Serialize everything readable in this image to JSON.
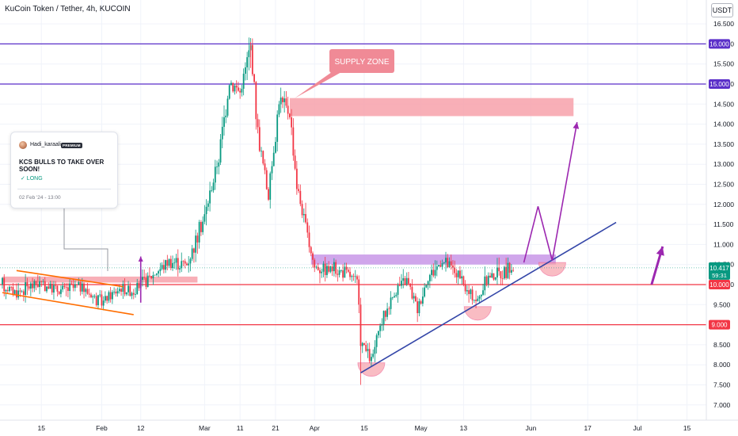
{
  "header": {
    "title": "KuCoin Token / Tether, 4h, KUCOIN",
    "currency": "USDT"
  },
  "idea_card": {
    "author": "Hadi_karaali",
    "badge": "PREMIUM",
    "title": "KCS BULLS TO TAKE OVER SOON!",
    "direction": "✓ LONG",
    "date": "02 Feb '24 - 13:00"
  },
  "annotations": {
    "supply_zone": "SUPPLY ZONE"
  },
  "colors": {
    "up": "#089981",
    "down": "#f23645",
    "purple": "#5b2fc9",
    "red_level": "#f23645",
    "zone_red": "#f7a1aa",
    "zone_purple": "#c896e8",
    "trend_blue": "#3446a8",
    "arrow_purple": "#9c27b0",
    "orange": "#ff6d00",
    "current_price_bg": "#089981"
  },
  "chart_data": {
    "type": "candlestick",
    "title": "KuCoin Token / Tether, 4h, KUCOIN",
    "y_axis": {
      "ticks": [
        "7.000",
        "7.500",
        "8.000",
        "8.500",
        "9.000",
        "9.500",
        "10.000",
        "10.500",
        "11.000",
        "11.500",
        "12.000",
        "12.500",
        "13.000",
        "13.500",
        "14.000",
        "14.500",
        "15.000",
        "15.500",
        "16.000",
        "16.500"
      ],
      "range": [
        6.85,
        16.6
      ]
    },
    "x_axis": {
      "ticks": [
        "15",
        "Feb",
        "12",
        "Mar",
        "11",
        "21",
        "Apr",
        "15",
        "May",
        "13",
        "Jun",
        "17",
        "Jul",
        "15"
      ],
      "range": [
        "2024-01-04",
        "2024-07-22"
      ]
    },
    "horizontal_levels": [
      {
        "price": 16.0,
        "label": "16.000",
        "color": "purple"
      },
      {
        "price": 15.0,
        "label": "15.000",
        "color": "purple"
      },
      {
        "price": 10.0,
        "label": "10.000",
        "color": "red"
      },
      {
        "price": 9.0,
        "label": "9.000",
        "color": "red"
      }
    ],
    "current_price": {
      "value": "10.417",
      "countdown": "59:31"
    },
    "price_path": [
      {
        "date": "2024-01-04",
        "price": 10.0
      },
      {
        "date": "2024-01-08",
        "price": 9.8
      },
      {
        "date": "2024-01-14",
        "price": 10.05
      },
      {
        "date": "2024-01-20",
        "price": 9.85
      },
      {
        "date": "2024-01-26",
        "price": 9.95
      },
      {
        "date": "2024-02-01",
        "price": 9.55
      },
      {
        "date": "2024-02-06",
        "price": 9.9
      },
      {
        "date": "2024-02-10",
        "price": 9.85
      },
      {
        "date": "2024-02-15",
        "price": 10.2
      },
      {
        "date": "2024-02-20",
        "price": 10.6
      },
      {
        "date": "2024-02-25",
        "price": 10.5
      },
      {
        "date": "2024-03-01",
        "price": 11.7
      },
      {
        "date": "2024-03-05",
        "price": 13.2
      },
      {
        "date": "2024-03-08",
        "price": 15.1
      },
      {
        "date": "2024-03-11",
        "price": 14.8
      },
      {
        "date": "2024-03-14",
        "price": 15.95
      },
      {
        "date": "2024-03-16",
        "price": 13.8
      },
      {
        "date": "2024-03-19",
        "price": 12.2
      },
      {
        "date": "2024-03-22",
        "price": 14.6
      },
      {
        "date": "2024-03-25",
        "price": 14.3
      },
      {
        "date": "2024-03-27",
        "price": 12.5
      },
      {
        "date": "2024-03-30",
        "price": 11.2
      },
      {
        "date": "2024-04-01",
        "price": 10.45
      },
      {
        "date": "2024-04-05",
        "price": 10.4
      },
      {
        "date": "2024-04-10",
        "price": 10.3
      },
      {
        "date": "2024-04-13",
        "price": 10.05
      },
      {
        "date": "2024-04-14",
        "price": 8.6
      },
      {
        "date": "2024-04-17",
        "price": 8.1
      },
      {
        "date": "2024-04-20",
        "price": 9.1
      },
      {
        "date": "2024-04-24",
        "price": 9.9
      },
      {
        "date": "2024-04-27",
        "price": 10.1
      },
      {
        "date": "2024-04-30",
        "price": 9.4
      },
      {
        "date": "2024-05-03",
        "price": 10.2
      },
      {
        "date": "2024-05-07",
        "price": 10.6
      },
      {
        "date": "2024-05-11",
        "price": 10.3
      },
      {
        "date": "2024-05-14",
        "price": 9.8
      },
      {
        "date": "2024-05-17",
        "price": 9.6
      },
      {
        "date": "2024-05-20",
        "price": 10.2
      },
      {
        "date": "2024-05-24",
        "price": 10.3
      },
      {
        "date": "2024-05-27",
        "price": 10.417
      }
    ],
    "zones": [
      {
        "name": "SUPPLY ZONE",
        "from": "2024-03-25",
        "to": "2024-06-13",
        "low": 14.2,
        "high": 14.65,
        "color": "zone_red"
      },
      {
        "from": "2024-03-31",
        "to": "2024-06-08",
        "low": 10.5,
        "high": 10.75,
        "color": "zone_purple"
      },
      {
        "from": "2024-01-04",
        "to": "2024-02-28",
        "low": 10.05,
        "high": 10.2,
        "color": "zone_red"
      }
    ],
    "trendlines": [
      {
        "from": {
          "date": "2024-04-14",
          "price": 7.8
        },
        "to": {
          "date": "2024-06-25",
          "price": 11.55
        },
        "color": "trend_blue"
      },
      {
        "from": {
          "date": "2024-01-08",
          "price": 10.35
        },
        "to": {
          "date": "2024-02-07",
          "price": 9.95
        },
        "color": "orange"
      },
      {
        "from": {
          "date": "2024-01-04",
          "price": 9.8
        },
        "to": {
          "date": "2024-02-10",
          "price": 9.25
        },
        "color": "orange"
      }
    ],
    "projection": [
      {
        "date": "2024-05-30",
        "price": 10.55
      },
      {
        "date": "2024-06-03",
        "price": 11.95
      },
      {
        "date": "2024-06-07",
        "price": 10.6
      },
      {
        "date": "2024-06-14",
        "price": 14.05
      }
    ]
  }
}
